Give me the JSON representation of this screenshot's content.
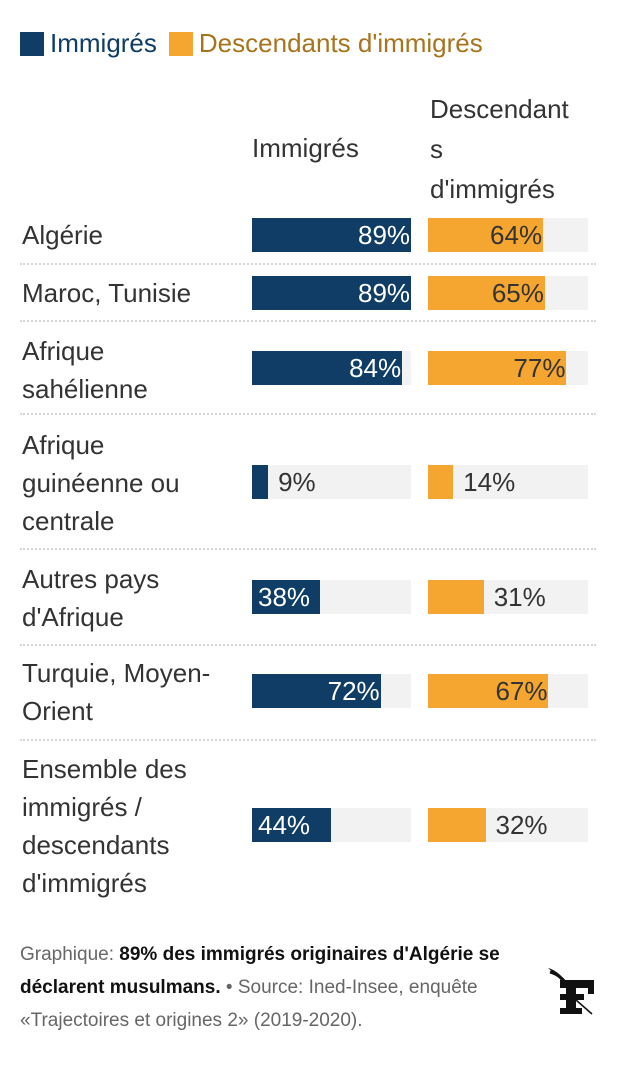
{
  "colors": {
    "immigres": "#0f3d66",
    "descendants": "#f5a631",
    "track": "#f2f2f2"
  },
  "legend": [
    {
      "label": "Immigrés",
      "color": "#0f3d66",
      "text_color": "#0f3d66"
    },
    {
      "label": "Descendants d'immigrés",
      "color": "#f5a631",
      "text_color": "#a7741c"
    }
  ],
  "chart_data": {
    "type": "bar",
    "orientation": "horizontal",
    "title": "",
    "column_headers": [
      "Immigrés",
      "Descendant s d'immigrés"
    ],
    "categories": [
      "Algérie",
      "Maroc, Tunisie",
      "Afrique sahélienne",
      "Afrique guinéenne ou centrale",
      "Autres pays d'Afrique",
      "Turquie, Moyen-Orient",
      "Ensemble des immigrés / descendants d'immigrés"
    ],
    "category_lines": [
      [
        "Algérie"
      ],
      [
        "Maroc, Tunisie"
      ],
      [
        "Afrique",
        "sahélienne"
      ],
      [
        "Afrique",
        "guinéenne ou",
        "centrale"
      ],
      [
        "Autres pays",
        "d'Afrique"
      ],
      [
        "Turquie, Moyen-",
        "Orient"
      ],
      [
        "Ensemble des",
        "immigrés /",
        "descendants",
        "d'immigrés"
      ]
    ],
    "series": [
      {
        "name": "Immigrés",
        "values": [
          89,
          89,
          84,
          9,
          38,
          72,
          44
        ],
        "labels": [
          "89%",
          "89%",
          "84%",
          "9%",
          "38%",
          "72%",
          "44%"
        ]
      },
      {
        "name": "Descendants d'immigrés",
        "values": [
          64,
          65,
          77,
          14,
          31,
          67,
          32
        ],
        "labels": [
          "64%",
          "65%",
          "77%",
          "14%",
          "31%",
          "67%",
          "32%"
        ]
      }
    ],
    "xlim": [
      0,
      89
    ],
    "unit": "%",
    "legend_position": "top-left",
    "grid": false
  },
  "footer": {
    "prefix": "Graphique: ",
    "headline": "89% des immigrés originaires d'Algérie se déclarent musulmans.",
    "source": " • Source: Ined-Insee, enquête «Trajectoires et origines 2» (2019-2020)."
  },
  "logo": {
    "name": "Le Figaro",
    "glyph": "F"
  }
}
